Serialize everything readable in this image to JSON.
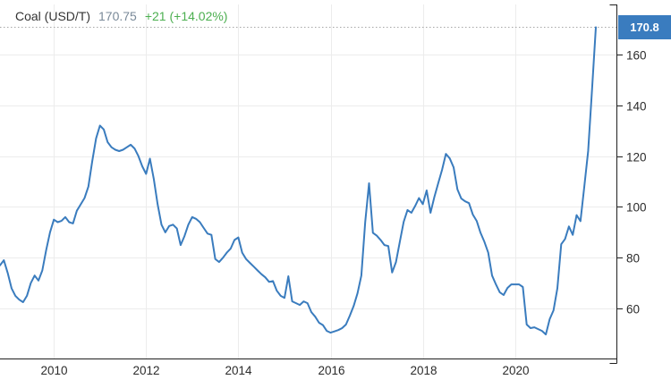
{
  "header": {
    "title": "Coal (USD/T)",
    "value": "170.75",
    "change": "+21 (+14.02%)"
  },
  "price_tag": {
    "label": "170.8"
  },
  "colors": {
    "line": "#3a7cbe",
    "grid": "#ececec",
    "axis": "#1f1f1f",
    "tick_label": "#2b2b2b",
    "dotted": "#a6a6a6",
    "tag_bg": "#3a7cbf",
    "change_green": "#4caf50",
    "value_gray_blue": "#7a8a99"
  },
  "chart_data": {
    "type": "line",
    "title": "Coal (USD/T)",
    "ylabel": "",
    "xlabel": "",
    "unit": "USD/T",
    "last_price": 170.75,
    "change_abs": 21,
    "change_pct": 14.02,
    "y_ticks": [
      60,
      80,
      100,
      120,
      140,
      160
    ],
    "x_tick_years": [
      "2010",
      "2012",
      "2014",
      "2016",
      "2018",
      "2020"
    ],
    "ylim": [
      40,
      180
    ],
    "grid": true,
    "legend": "none",
    "x": [
      "2008-11",
      "2008-12",
      "2009-01",
      "2009-02",
      "2009-03",
      "2009-04",
      "2009-05",
      "2009-06",
      "2009-07",
      "2009-08",
      "2009-09",
      "2009-10",
      "2009-11",
      "2009-12",
      "2010-01",
      "2010-02",
      "2010-03",
      "2010-04",
      "2010-05",
      "2010-06",
      "2010-07",
      "2010-08",
      "2010-09",
      "2010-10",
      "2010-11",
      "2010-12",
      "2011-01",
      "2011-02",
      "2011-03",
      "2011-04",
      "2011-05",
      "2011-06",
      "2011-07",
      "2011-08",
      "2011-09",
      "2011-10",
      "2011-11",
      "2011-12",
      "2012-01",
      "2012-02",
      "2012-03",
      "2012-04",
      "2012-05",
      "2012-06",
      "2012-07",
      "2012-08",
      "2012-09",
      "2012-10",
      "2012-11",
      "2012-12",
      "2013-01",
      "2013-02",
      "2013-03",
      "2013-04",
      "2013-05",
      "2013-06",
      "2013-07",
      "2013-08",
      "2013-09",
      "2013-10",
      "2013-11",
      "2013-12",
      "2014-01",
      "2014-02",
      "2014-03",
      "2014-04",
      "2014-05",
      "2014-06",
      "2014-07",
      "2014-08",
      "2014-09",
      "2014-10",
      "2014-11",
      "2014-12",
      "2015-01",
      "2015-02",
      "2015-03",
      "2015-04",
      "2015-05",
      "2015-06",
      "2015-07",
      "2015-08",
      "2015-09",
      "2015-10",
      "2015-11",
      "2015-12",
      "2016-01",
      "2016-02",
      "2016-03",
      "2016-04",
      "2016-05",
      "2016-06",
      "2016-07",
      "2016-08",
      "2016-09",
      "2016-10",
      "2016-11",
      "2016-12",
      "2017-01",
      "2017-02",
      "2017-03",
      "2017-04",
      "2017-05",
      "2017-06",
      "2017-07",
      "2017-08",
      "2017-09",
      "2017-10",
      "2017-11",
      "2017-12",
      "2018-01",
      "2018-02",
      "2018-03",
      "2018-04",
      "2018-05",
      "2018-06",
      "2018-07",
      "2018-08",
      "2018-09",
      "2018-10",
      "2018-11",
      "2018-12",
      "2019-01",
      "2019-02",
      "2019-03",
      "2019-04",
      "2019-05",
      "2019-06",
      "2019-07",
      "2019-08",
      "2019-09",
      "2019-10",
      "2019-11",
      "2019-12",
      "2020-01",
      "2020-02",
      "2020-03",
      "2020-04",
      "2020-05",
      "2020-06",
      "2020-07",
      "2020-08",
      "2020-09",
      "2020-10",
      "2020-11",
      "2020-12",
      "2021-01",
      "2021-02",
      "2021-03",
      "2021-04",
      "2021-05",
      "2021-06",
      "2021-07",
      "2021-08",
      "2021-09",
      "2021-10"
    ],
    "values": [
      77,
      79,
      74,
      68,
      65,
      63.5,
      62.5,
      65,
      70,
      73,
      71,
      75,
      83,
      90,
      95,
      94,
      94.5,
      96,
      94,
      93.5,
      98.5,
      101,
      103.5,
      108,
      118,
      127,
      132,
      130.5,
      125.5,
      123.5,
      122.5,
      122,
      122.5,
      123.5,
      124.5,
      123,
      120,
      116,
      113,
      119,
      111,
      101,
      93,
      90,
      92.5,
      93,
      91.5,
      85,
      88.5,
      93,
      96,
      95.3,
      94,
      91.7,
      89.5,
      89,
      79.5,
      78.3,
      80,
      82,
      83.6,
      87,
      88,
      82,
      79.5,
      78,
      76.5,
      75,
      73.5,
      72.3,
      70.5,
      70.8,
      67,
      65,
      64.2,
      72.7,
      62.8,
      62.1,
      61.4,
      62.8,
      62.1,
      58.6,
      56.8,
      54.4,
      53.5,
      51.2,
      50.5,
      51,
      51.5,
      52.3,
      53.7,
      57.2,
      61,
      66,
      73,
      94,
      109.3,
      89.8,
      88.7,
      87,
      85,
      84.6,
      74.2,
      78.3,
      86.3,
      94.1,
      98.8,
      97.7,
      100.4,
      103.5,
      101.1,
      106.5,
      97.7,
      103.9,
      109.3,
      114.6,
      120.9,
      119.1,
      115.6,
      106.9,
      103.3,
      102.2,
      101.5,
      97,
      94.5,
      89.8,
      86.3,
      82,
      73,
      69.5,
      66.4,
      65.3,
      68.1,
      69.5,
      69.5,
      69.5,
      68.5,
      53.7,
      52.3,
      52.6,
      51.9,
      51.2,
      49.8,
      55.8,
      59.3,
      68,
      85.3,
      87.4,
      92.3,
      89,
      96.8,
      94.4,
      108,
      122,
      146,
      170.75
    ]
  }
}
